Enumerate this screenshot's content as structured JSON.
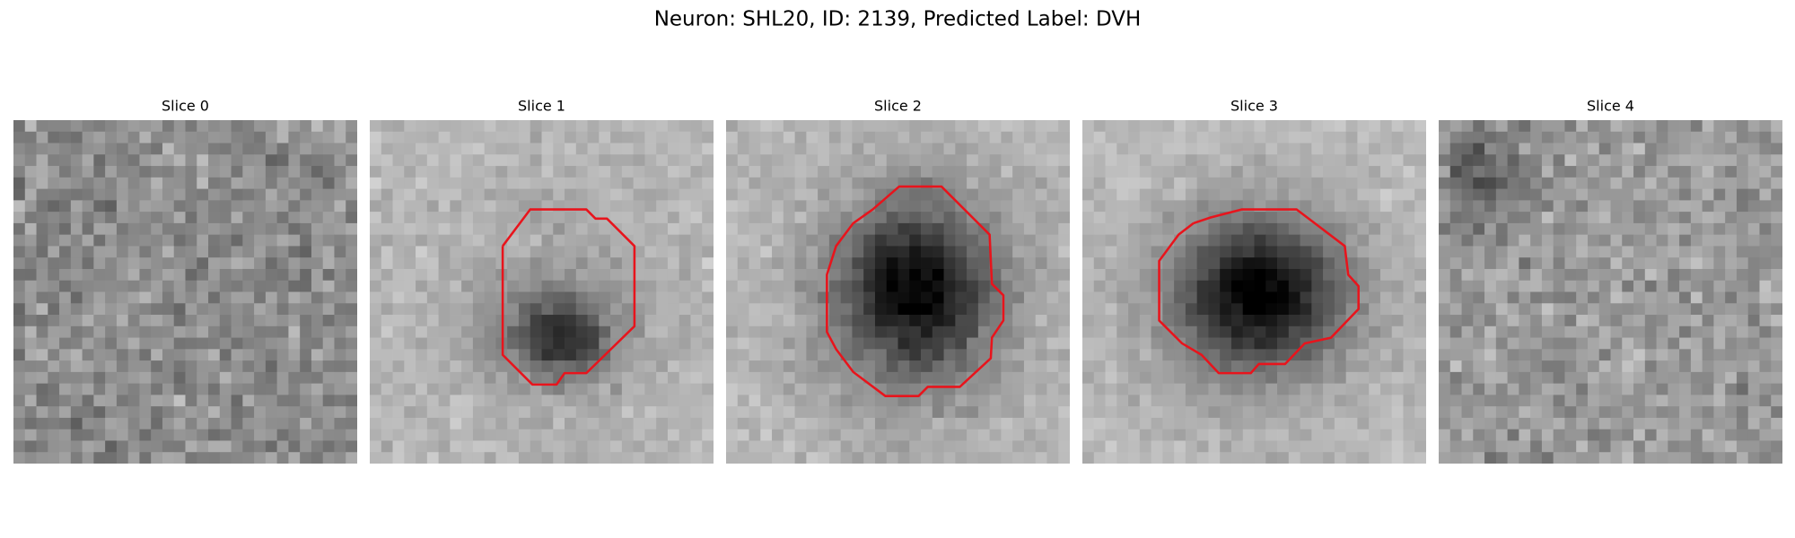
{
  "title": "Neuron: SHL20, ID: 2139, Predicted Label: DVH",
  "panels": [
    {
      "title": "Slice 0"
    },
    {
      "title": "Slice 1"
    },
    {
      "title": "Slice 2"
    },
    {
      "title": "Slice 3"
    },
    {
      "title": "Slice 4"
    }
  ]
}
